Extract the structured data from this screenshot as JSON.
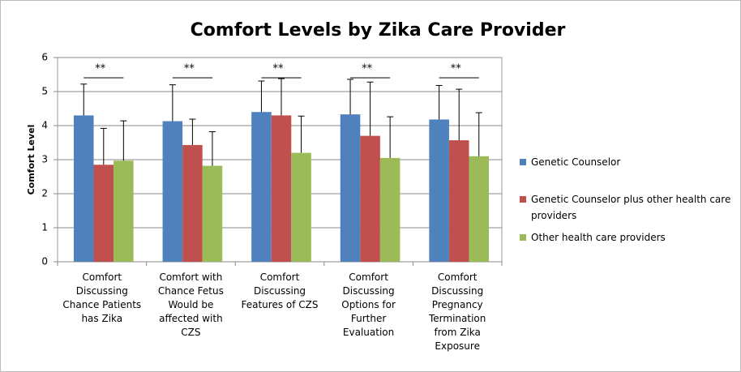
{
  "chart_data": {
    "type": "bar",
    "title": "Comfort Levels by Zika Care Provider",
    "ylabel": "Comfort Level",
    "categories": [
      "Comfort Discussing Chance Patients has Zika",
      "Comfort with Chance Fetus Would be affected with CZS",
      "Comfort Discussing Features of CZS",
      "Comfort Discussing Options for Further Evaluation",
      "Comfort Discussing Pregnancy Termination from Zika Exposure"
    ],
    "series": [
      {
        "name": "Genetic Counselor",
        "color": "#4f81bd",
        "values": [
          4.3,
          4.13,
          4.4,
          4.33,
          4.18
        ],
        "errors": [
          0.92,
          1.07,
          0.91,
          1.03,
          1.0
        ]
      },
      {
        "name": "Genetic Counselor plus other health care providers",
        "color": "#c0504d",
        "values": [
          2.85,
          3.43,
          4.3,
          3.7,
          3.57
        ],
        "errors": [
          1.07,
          0.76,
          1.08,
          1.58,
          1.5
        ]
      },
      {
        "name": "Other health care providers",
        "color": "#9bbb59",
        "values": [
          2.97,
          2.82,
          3.2,
          3.05,
          3.1
        ],
        "errors": [
          1.17,
          1.0,
          1.08,
          1.21,
          1.28
        ]
      }
    ],
    "significance": [
      "**",
      "**",
      "**",
      "**",
      "**"
    ],
    "ylim": [
      0,
      6
    ],
    "yticks": [
      0,
      1,
      2,
      3,
      4,
      5,
      6
    ],
    "grid": true
  }
}
